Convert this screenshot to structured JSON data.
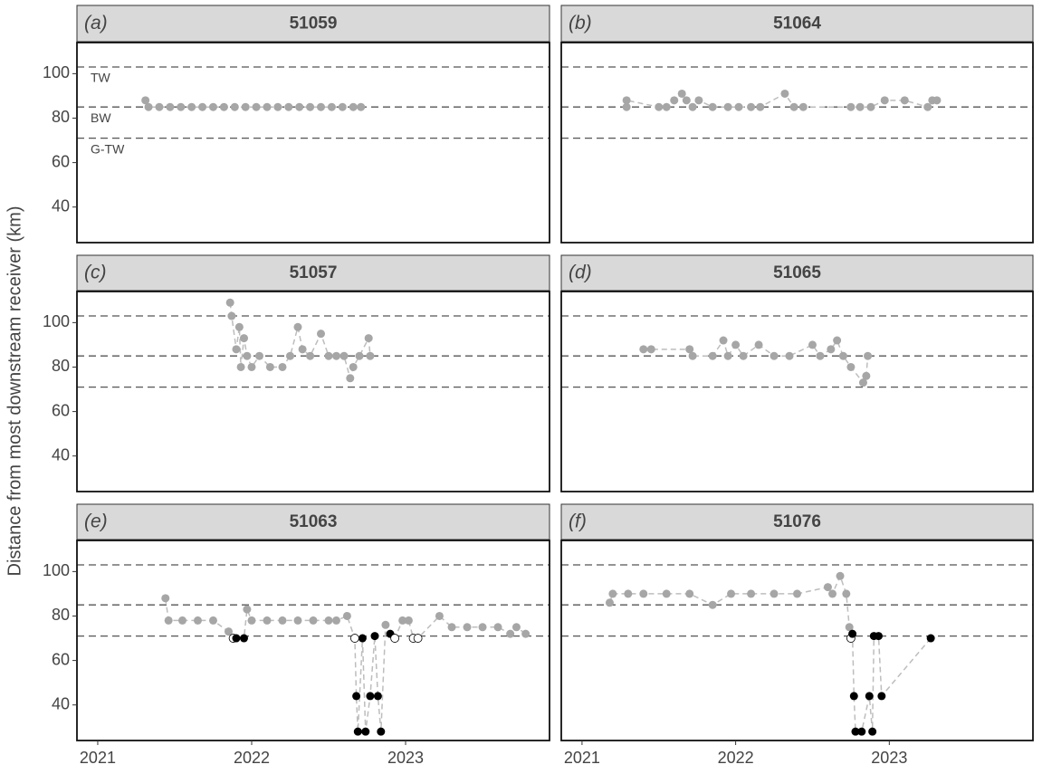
{
  "axes": {
    "ylabel": "Distance from most downstream receiver (km)",
    "xlim": [
      2020.865,
      2023.935
    ],
    "xticks": [
      2021,
      2022,
      2023
    ],
    "ylim": [
      24,
      114
    ],
    "yticks": [
      40,
      60,
      80,
      100
    ],
    "reference_lines": [
      {
        "value": 103,
        "label": "TW"
      },
      {
        "value": 85,
        "label": "BW"
      },
      {
        "value": 71,
        "label": "G-TW"
      }
    ]
  },
  "chart_data": [
    {
      "type": "scatter",
      "tag": "(a)",
      "title": "51059",
      "x": [
        2021.31,
        2021.33,
        2021.4,
        2021.47,
        2021.54,
        2021.61,
        2021.68,
        2021.75,
        2021.82,
        2021.89,
        2021.96,
        2022.03,
        2022.1,
        2022.17,
        2022.24,
        2022.31,
        2022.38,
        2022.45,
        2022.52,
        2022.59,
        2022.66,
        2022.71
      ],
      "values": [
        88,
        85,
        85,
        85,
        85,
        85,
        85,
        85,
        85,
        85,
        85,
        85,
        85,
        85,
        85,
        85,
        85,
        85,
        85,
        85,
        85,
        85
      ],
      "colors": [
        "#a6a6a6",
        "#a6a6a6",
        "#a6a6a6",
        "#a6a6a6",
        "#a6a6a6",
        "#a6a6a6",
        "#a6a6a6",
        "#a6a6a6",
        "#a6a6a6",
        "#a6a6a6",
        "#a6a6a6",
        "#a6a6a6",
        "#a6a6a6",
        "#a6a6a6",
        "#a6a6a6",
        "#a6a6a6",
        "#a6a6a6",
        "#a6a6a6",
        "#a6a6a6",
        "#a6a6a6",
        "#a6a6a6",
        "#a6a6a6"
      ]
    },
    {
      "type": "scatter",
      "tag": "(b)",
      "title": "51064",
      "x": [
        2021.29,
        2021.29,
        2021.5,
        2021.55,
        2021.6,
        2021.65,
        2021.68,
        2021.72,
        2021.76,
        2021.85,
        2021.95,
        2022.02,
        2022.1,
        2022.16,
        2022.32,
        2022.38,
        2022.44,
        2022.75,
        2022.81,
        2022.88,
        2022.97,
        2023.1,
        2023.25,
        2023.28,
        2023.31
      ],
      "values": [
        85,
        88,
        85,
        85,
        88,
        91,
        88,
        85,
        88,
        85,
        85,
        85,
        85,
        85,
        91,
        85,
        85,
        85,
        85,
        85,
        88,
        88,
        85,
        88,
        88
      ],
      "colors": [
        "#a6a6a6",
        "#a6a6a6",
        "#a6a6a6",
        "#a6a6a6",
        "#a6a6a6",
        "#a6a6a6",
        "#a6a6a6",
        "#a6a6a6",
        "#a6a6a6",
        "#a6a6a6",
        "#a6a6a6",
        "#a6a6a6",
        "#a6a6a6",
        "#a6a6a6",
        "#a6a6a6",
        "#a6a6a6",
        "#a6a6a6",
        "#a6a6a6",
        "#a6a6a6",
        "#a6a6a6",
        "#a6a6a6",
        "#a6a6a6",
        "#a6a6a6",
        "#a6a6a6",
        "#a6a6a6"
      ]
    },
    {
      "type": "scatter",
      "tag": "(c)",
      "title": "51057",
      "x": [
        2021.86,
        2021.87,
        2021.9,
        2021.92,
        2021.93,
        2021.95,
        2021.97,
        2022.0,
        2022.05,
        2022.12,
        2022.2,
        2022.25,
        2022.3,
        2022.33,
        2022.38,
        2022.45,
        2022.5,
        2022.55,
        2022.6,
        2022.64,
        2022.66,
        2022.7,
        2022.76,
        2022.77
      ],
      "values": [
        109,
        103,
        88,
        98,
        80,
        93,
        85,
        80,
        85,
        80,
        80,
        85,
        98,
        88,
        85,
        95,
        85,
        85,
        85,
        75,
        80,
        85,
        93,
        85
      ],
      "colors": [
        "#a6a6a6",
        "#a6a6a6",
        "#a6a6a6",
        "#a6a6a6",
        "#a6a6a6",
        "#a6a6a6",
        "#a6a6a6",
        "#a6a6a6",
        "#a6a6a6",
        "#a6a6a6",
        "#a6a6a6",
        "#a6a6a6",
        "#a6a6a6",
        "#a6a6a6",
        "#a6a6a6",
        "#a6a6a6",
        "#a6a6a6",
        "#a6a6a6",
        "#a6a6a6",
        "#a6a6a6",
        "#a6a6a6",
        "#a6a6a6",
        "#a6a6a6",
        "#a6a6a6"
      ]
    },
    {
      "type": "scatter",
      "tag": "(d)",
      "title": "51065",
      "x": [
        2021.4,
        2021.45,
        2021.7,
        2021.72,
        2021.85,
        2021.92,
        2021.95,
        2022.0,
        2022.05,
        2022.15,
        2022.25,
        2022.35,
        2022.5,
        2022.55,
        2022.62,
        2022.66,
        2022.7,
        2022.75,
        2022.83,
        2022.85,
        2022.86
      ],
      "values": [
        88,
        88,
        88,
        85,
        85,
        92,
        85,
        90,
        85,
        90,
        85,
        85,
        90,
        85,
        88,
        92,
        85,
        80,
        73,
        76,
        85
      ],
      "colors": [
        "#a6a6a6",
        "#a6a6a6",
        "#a6a6a6",
        "#a6a6a6",
        "#a6a6a6",
        "#a6a6a6",
        "#a6a6a6",
        "#a6a6a6",
        "#a6a6a6",
        "#a6a6a6",
        "#a6a6a6",
        "#a6a6a6",
        "#a6a6a6",
        "#a6a6a6",
        "#a6a6a6",
        "#a6a6a6",
        "#a6a6a6",
        "#a6a6a6",
        "#a6a6a6",
        "#a6a6a6",
        "#a6a6a6"
      ]
    },
    {
      "type": "scatter",
      "tag": "(e)",
      "title": "51063",
      "x": [
        2021.44,
        2021.46,
        2021.55,
        2021.65,
        2021.75,
        2021.85,
        2021.88,
        2021.9,
        2021.95,
        2021.97,
        2022.0,
        2022.1,
        2022.2,
        2022.3,
        2022.4,
        2022.5,
        2022.55,
        2022.62,
        2022.67,
        2022.68,
        2022.69,
        2022.72,
        2022.74,
        2022.77,
        2022.8,
        2022.82,
        2022.84,
        2022.87,
        2022.9,
        2022.93,
        2022.98,
        2023.02,
        2023.05,
        2023.08,
        2023.22,
        2023.3,
        2023.4,
        2023.5,
        2023.6,
        2023.68,
        2023.72,
        2023.78
      ],
      "values": [
        88,
        78,
        78,
        78,
        78,
        73,
        70,
        70,
        70,
        83,
        78,
        78,
        78,
        78,
        78,
        78,
        78,
        80,
        70,
        44,
        28,
        70,
        28,
        44,
        71,
        44,
        28,
        76,
        72,
        70,
        78,
        78,
        70,
        70,
        80,
        75,
        75,
        75,
        75,
        72,
        75,
        72
      ],
      "colors": [
        "#a6a6a6",
        "#a6a6a6",
        "#a6a6a6",
        "#a6a6a6",
        "#a6a6a6",
        "#a6a6a6",
        "#ffffff",
        "#000000",
        "#000000",
        "#a6a6a6",
        "#a6a6a6",
        "#a6a6a6",
        "#a6a6a6",
        "#a6a6a6",
        "#a6a6a6",
        "#a6a6a6",
        "#a6a6a6",
        "#a6a6a6",
        "#ffffff",
        "#000000",
        "#000000",
        "#000000",
        "#000000",
        "#000000",
        "#000000",
        "#000000",
        "#000000",
        "#a6a6a6",
        "#000000",
        "#ffffff",
        "#a6a6a6",
        "#a6a6a6",
        "#ffffff",
        "#ffffff",
        "#a6a6a6",
        "#a6a6a6",
        "#a6a6a6",
        "#a6a6a6",
        "#a6a6a6",
        "#a6a6a6",
        "#a6a6a6",
        "#a6a6a6"
      ]
    },
    {
      "type": "scatter",
      "tag": "(f)",
      "title": "51076",
      "x": [
        2021.18,
        2021.2,
        2021.3,
        2021.4,
        2021.55,
        2021.7,
        2021.85,
        2021.97,
        2022.1,
        2022.25,
        2022.4,
        2022.6,
        2022.63,
        2022.68,
        2022.72,
        2022.74,
        2022.75,
        2022.76,
        2022.77,
        2022.78,
        2022.82,
        2022.87,
        2022.89,
        2022.9,
        2022.93,
        2022.95,
        2023.27
      ],
      "values": [
        86,
        90,
        90,
        90,
        90,
        90,
        85,
        90,
        90,
        90,
        90,
        93,
        90,
        98,
        90,
        75,
        70,
        72,
        44,
        28,
        28,
        44,
        28,
        71,
        71,
        44,
        70
      ],
      "colors": [
        "#a6a6a6",
        "#a6a6a6",
        "#a6a6a6",
        "#a6a6a6",
        "#a6a6a6",
        "#a6a6a6",
        "#a6a6a6",
        "#a6a6a6",
        "#a6a6a6",
        "#a6a6a6",
        "#a6a6a6",
        "#a6a6a6",
        "#a6a6a6",
        "#a6a6a6",
        "#a6a6a6",
        "#a6a6a6",
        "#ffffff",
        "#000000",
        "#000000",
        "#000000",
        "#000000",
        "#000000",
        "#000000",
        "#000000",
        "#000000",
        "#000000",
        "#000000"
      ]
    }
  ]
}
